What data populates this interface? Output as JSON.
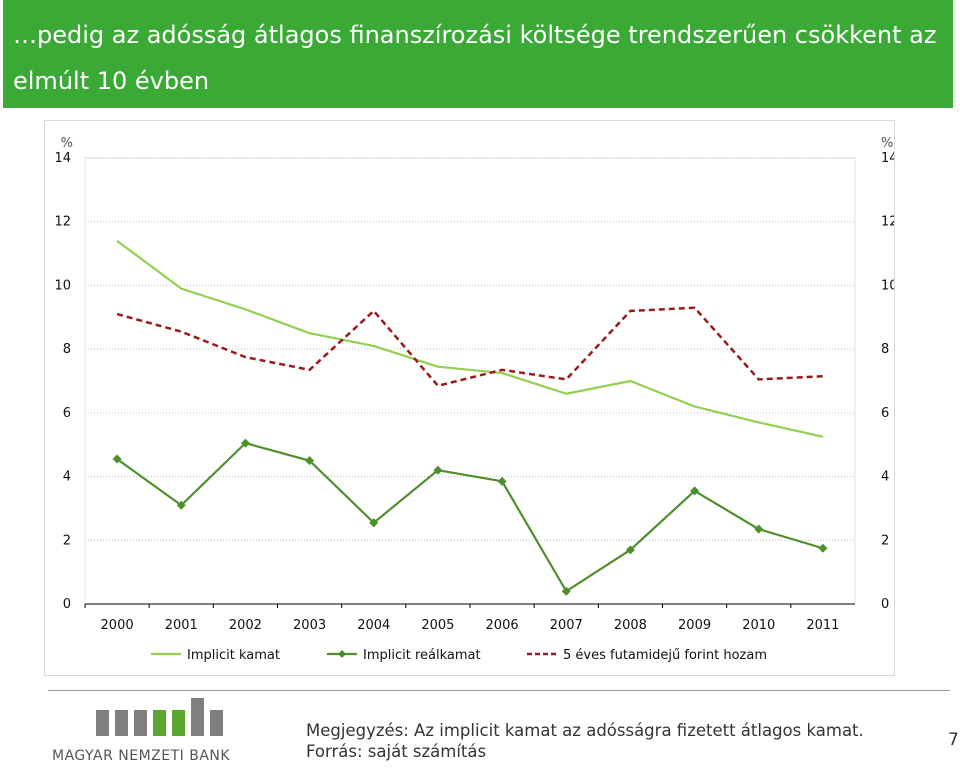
{
  "header": {
    "title": "…pedig az adósság átlagos finanszírozási költsége trendszerűen csökkent az elmúlt 10 évben",
    "bg_color": "#3aa935"
  },
  "chart_data": {
    "type": "line",
    "left_axis_unit": "%",
    "right_axis_unit": "%",
    "ylim": [
      0,
      14
    ],
    "yticks": [
      "0",
      "2",
      "4",
      "6",
      "8",
      "10",
      "12",
      "14"
    ],
    "categories": [
      "2000",
      "2001",
      "2002",
      "2003",
      "2004",
      "2005",
      "2006",
      "2007",
      "2008",
      "2009",
      "2010",
      "2011"
    ],
    "grid": true,
    "legend_position": "bottom",
    "series": [
      {
        "name": "Implicit kamat",
        "color": "#92d050",
        "style": "solid",
        "marker": "none",
        "values": [
          11.4,
          9.9,
          9.25,
          8.5,
          8.1,
          7.45,
          7.25,
          6.6,
          7.0,
          6.2,
          5.7,
          5.25
        ]
      },
      {
        "name": "Implicit reálkamat",
        "color": "#4e8f2c",
        "style": "solid",
        "marker": "diamond",
        "values": [
          4.55,
          3.1,
          5.05,
          4.5,
          2.55,
          4.2,
          3.85,
          0.4,
          1.7,
          3.55,
          2.35,
          1.75
        ]
      },
      {
        "name": "5 éves futamidejű forint hozam",
        "color": "#9b1b1b",
        "style": "dashed",
        "marker": "none",
        "values": [
          9.1,
          8.55,
          7.75,
          7.35,
          9.2,
          6.85,
          7.35,
          7.05,
          9.2,
          9.3,
          7.05,
          7.15
        ]
      }
    ]
  },
  "footer": {
    "note_line1": "Megjegyzés: Az implicit kamat az adósságra fizetett átlagos kamat.",
    "note_line2": "Forrás: saját számítás",
    "page_number": "7",
    "logo_text": "MAGYAR NEMZETI BANK",
    "logo_icon": "mnb-bars-logo-icon",
    "logo_gray": "#7f7f7f",
    "logo_green": "#5aa832"
  }
}
